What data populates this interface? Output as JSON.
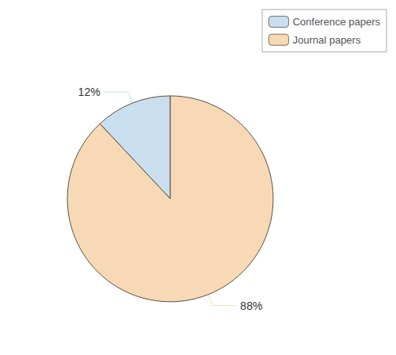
{
  "chart_data": {
    "type": "pie",
    "categories": [
      "Conference papers",
      "Journal papers"
    ],
    "values": [
      12,
      88
    ],
    "value_labels": [
      "12%",
      "88%"
    ],
    "colors": [
      "#c9dff0",
      "#f8d9b5"
    ],
    "data_labels": true,
    "legend": "upper right"
  }
}
